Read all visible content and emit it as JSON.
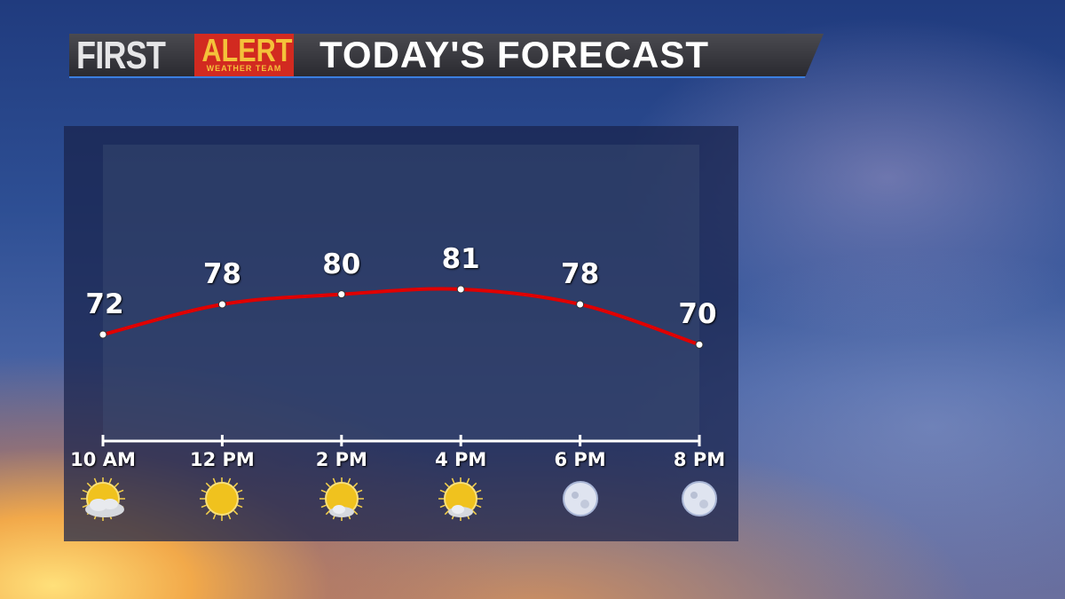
{
  "header": {
    "brand_first": "FIRST",
    "brand_alert": "ALERT",
    "brand_sub": "WEATHER TEAM",
    "title": "TODAY'S FORECAST"
  },
  "chart_data": {
    "type": "line",
    "title": "TODAY'S FORECAST",
    "categories": [
      "10 AM",
      "12 PM",
      "2 PM",
      "4 PM",
      "6 PM",
      "8 PM"
    ],
    "values": [
      72,
      78,
      80,
      81,
      78,
      70
    ],
    "data_labels": [
      "72",
      "78",
      "80",
      "81",
      "78",
      "70"
    ],
    "icons": [
      "partly-cloudy-icon",
      "sunny-icon",
      "mostly-sunny-icon",
      "mostly-sunny-icon",
      "clear-night-icon",
      "clear-night-icon"
    ],
    "line_color": "#e00000",
    "grid": false
  }
}
